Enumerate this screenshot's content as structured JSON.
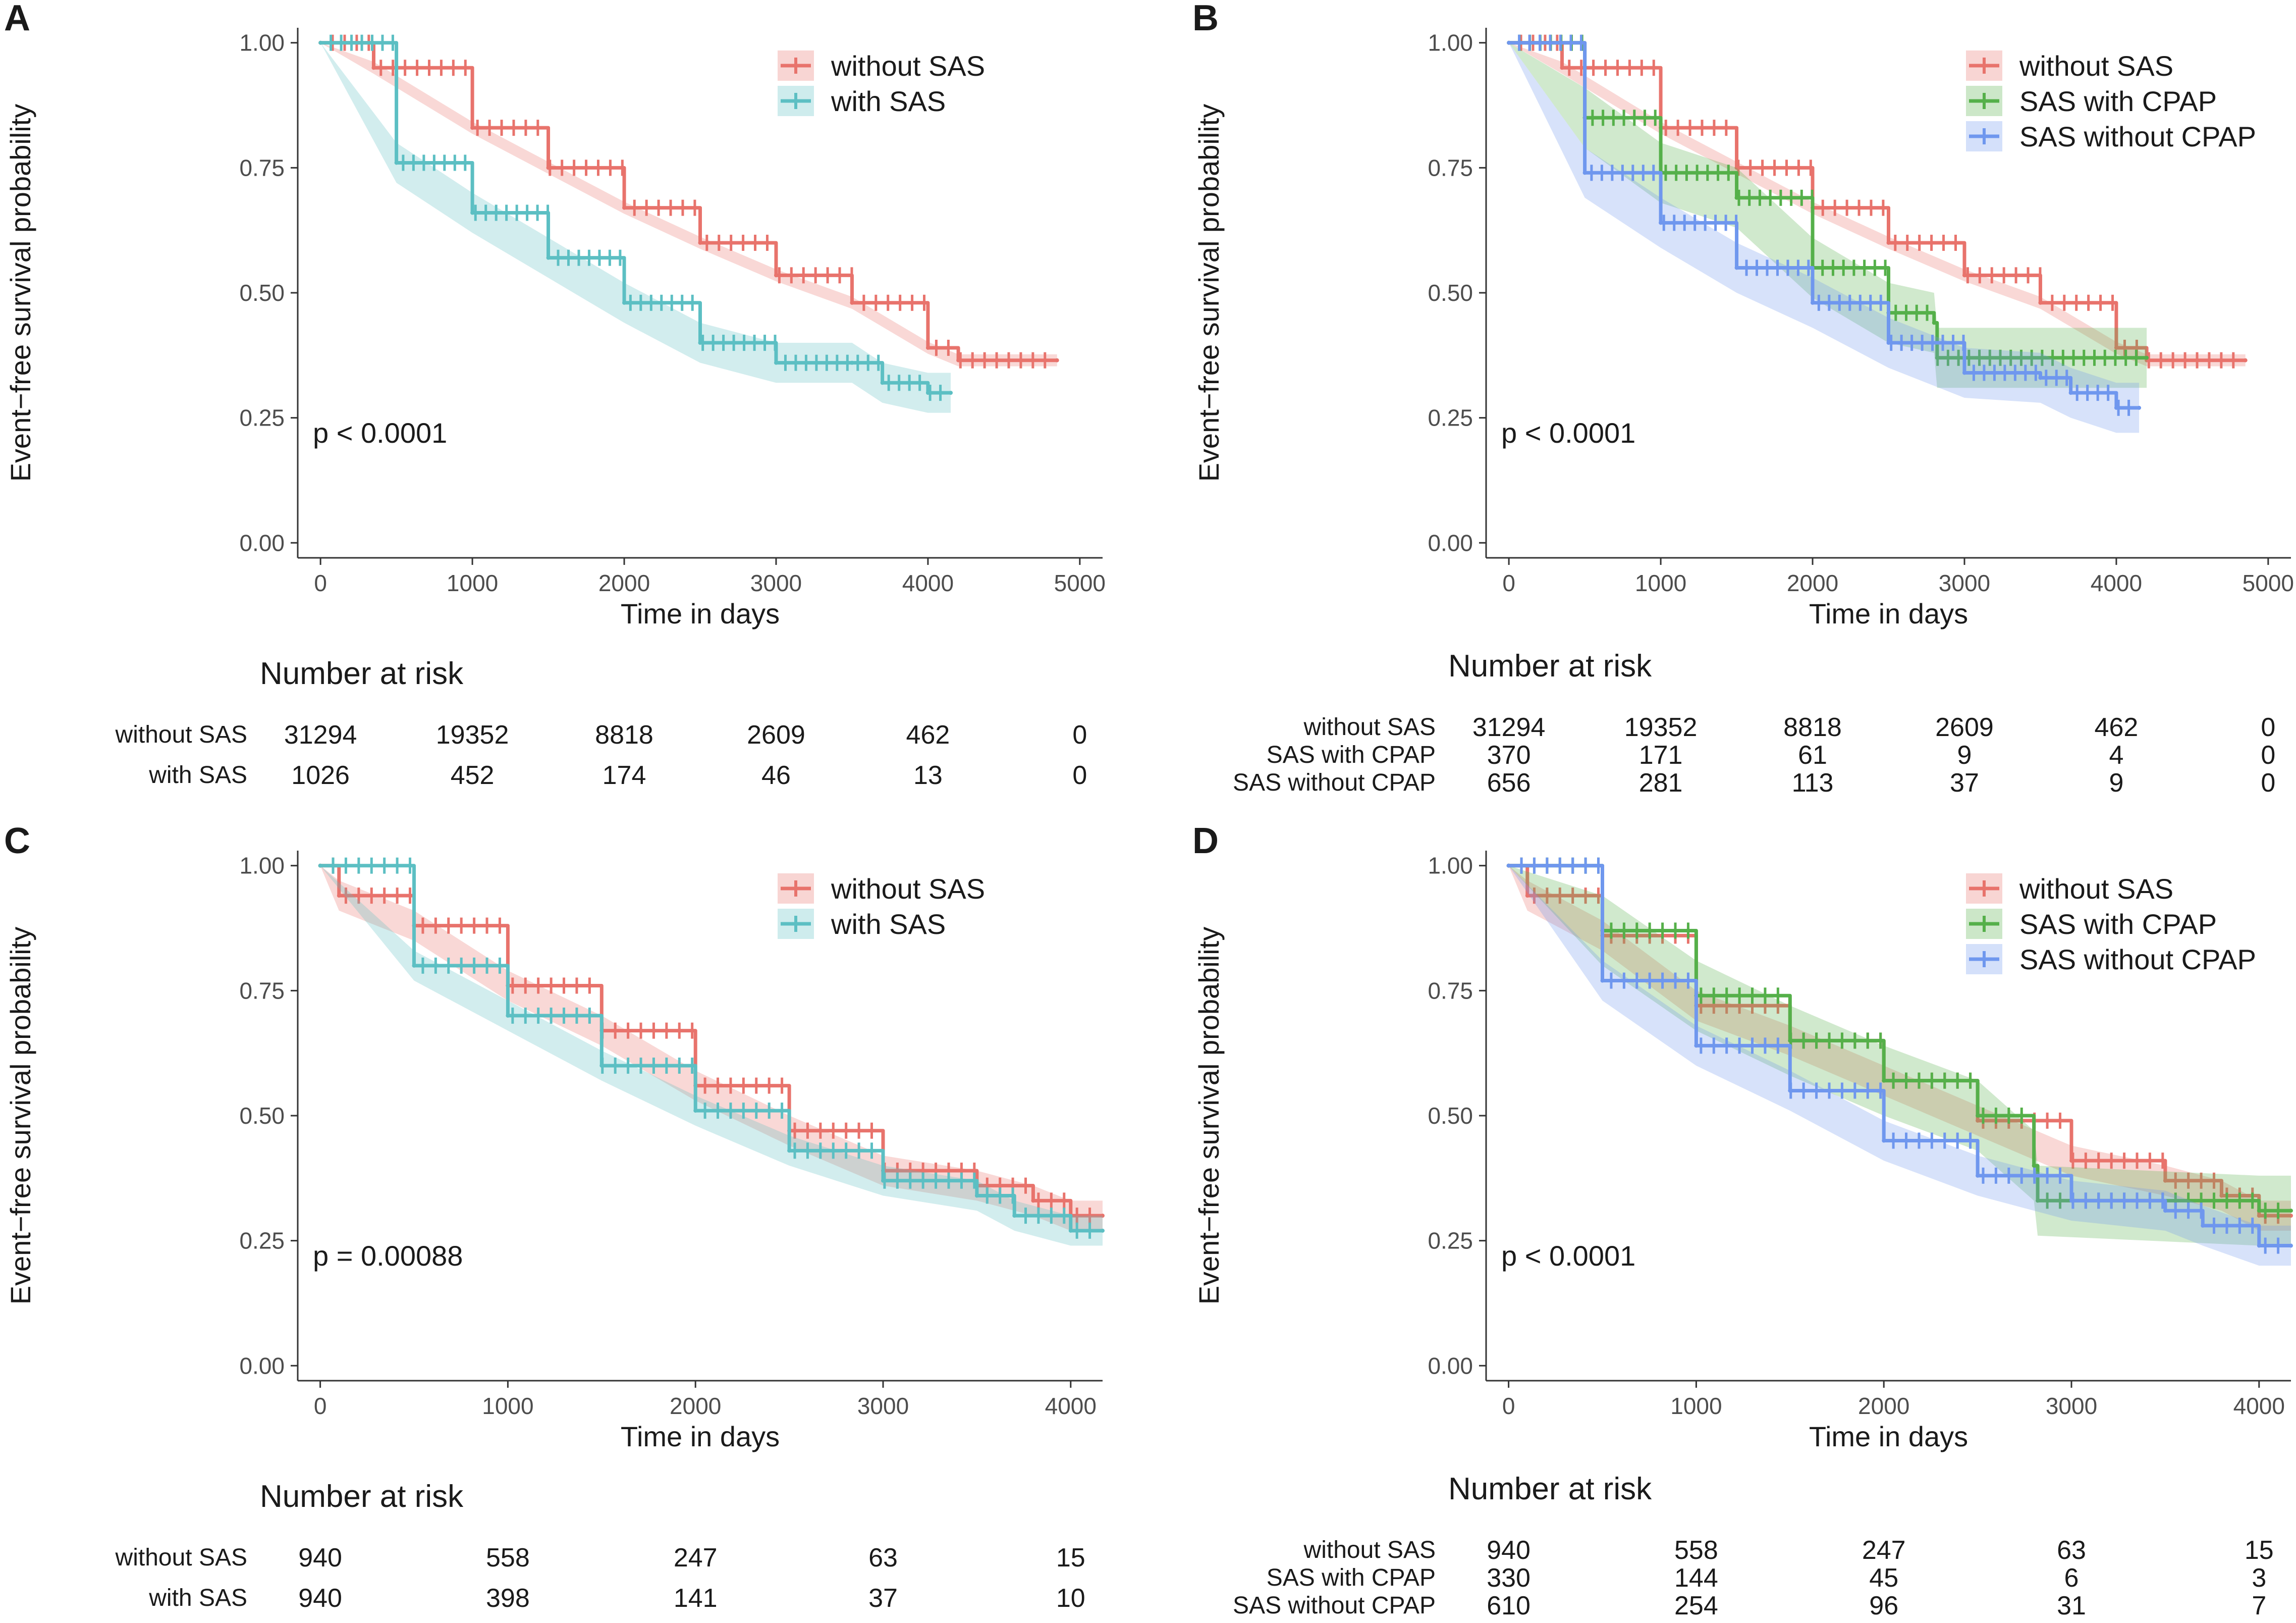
{
  "colors": {
    "without_sas": "#E8736C",
    "with_sas": "#5CBFC3",
    "sas_with_cpap": "#55B04A",
    "sas_without_cpap": "#6F97EE"
  },
  "chart_data": [
    {
      "type": "line",
      "panel": "A",
      "title": "",
      "xlabel": "Time in days",
      "ylabel": "Event−free survival probability",
      "xlim": [
        -150,
        5150
      ],
      "ylim": [
        -0.03,
        1.03
      ],
      "x_ticks": [
        0,
        1000,
        2000,
        3000,
        4000,
        5000
      ],
      "x_tick_labels": [
        "0",
        "1000",
        "2000",
        "3000",
        "4000",
        "5000"
      ],
      "y_ticks": [
        0,
        0.25,
        0.5,
        0.75,
        1.0
      ],
      "y_tick_labels": [
        "0.00",
        "0.25",
        "0.50",
        "0.75",
        "1.00"
      ],
      "pvalue": "p < 0.0001",
      "legend_position": "top-right",
      "series": [
        {
          "name": "without SAS",
          "color_key": "without_sas",
          "x": [
            0,
            350,
            1000,
            1500,
            2000,
            2500,
            3000,
            3500,
            4000,
            4200,
            4850
          ],
          "y": [
            1.0,
            0.95,
            0.83,
            0.75,
            0.67,
            0.6,
            0.535,
            0.48,
            0.39,
            0.365,
            0.365
          ],
          "ci_halfwidth": 0.012
        },
        {
          "name": "with SAS",
          "color_key": "with_sas",
          "x": [
            0,
            500,
            1000,
            1500,
            2000,
            2500,
            3000,
            3500,
            3700,
            4000,
            4150
          ],
          "y": [
            1.0,
            0.76,
            0.66,
            0.57,
            0.48,
            0.4,
            0.36,
            0.36,
            0.32,
            0.3,
            0.3
          ],
          "ci_halfwidth": 0.04
        }
      ],
      "risk_table": {
        "title": "Number at risk",
        "columns": [
          "0",
          "1000",
          "2000",
          "3000",
          "4000",
          "5000"
        ],
        "rows": [
          {
            "label": "without SAS",
            "values": [
              "31294",
              "19352",
              "8818",
              "2609",
              "462",
              "0"
            ]
          },
          {
            "label": "with SAS",
            "values": [
              "1026",
              "452",
              "174",
              "46",
              "13",
              "0"
            ]
          }
        ]
      }
    },
    {
      "type": "line",
      "panel": "B",
      "title": "",
      "xlabel": "Time in days",
      "ylabel": "Event−free survival probability",
      "xlim": [
        -150,
        5150
      ],
      "ylim": [
        -0.03,
        1.03
      ],
      "x_ticks": [
        0,
        1000,
        2000,
        3000,
        4000,
        5000
      ],
      "x_tick_labels": [
        "0",
        "1000",
        "2000",
        "3000",
        "4000",
        "5000"
      ],
      "y_ticks": [
        0,
        0.25,
        0.5,
        0.75,
        1.0
      ],
      "y_tick_labels": [
        "0.00",
        "0.25",
        "0.50",
        "0.75",
        "1.00"
      ],
      "pvalue": "p < 0.0001",
      "legend_position": "top-right",
      "series": [
        {
          "name": "without SAS",
          "color_key": "without_sas",
          "x": [
            0,
            350,
            1000,
            1500,
            2000,
            2500,
            3000,
            3500,
            4000,
            4200,
            4850
          ],
          "y": [
            1.0,
            0.95,
            0.83,
            0.75,
            0.67,
            0.6,
            0.535,
            0.48,
            0.39,
            0.365,
            0.365
          ],
          "ci_halfwidth": 0.012
        },
        {
          "name": "SAS with CPAP",
          "color_key": "sas_with_cpap",
          "x": [
            0,
            500,
            1000,
            1500,
            2000,
            2500,
            2800,
            2820,
            4200
          ],
          "y": [
            1.0,
            0.85,
            0.74,
            0.69,
            0.55,
            0.46,
            0.44,
            0.37,
            0.37
          ],
          "ci_halfwidth": 0.06
        },
        {
          "name": "SAS without CPAP",
          "color_key": "sas_without_cpap",
          "x": [
            0,
            500,
            1000,
            1500,
            2000,
            2500,
            3000,
            3500,
            3700,
            4000,
            4150
          ],
          "y": [
            1.0,
            0.74,
            0.64,
            0.55,
            0.48,
            0.4,
            0.34,
            0.33,
            0.3,
            0.27,
            0.27
          ],
          "ci_halfwidth": 0.05
        }
      ],
      "risk_table": {
        "title": "Number at risk",
        "columns": [
          "0",
          "1000",
          "2000",
          "3000",
          "4000",
          "5000"
        ],
        "rows": [
          {
            "label": "without SAS",
            "values": [
              "31294",
              "19352",
              "8818",
              "2609",
              "462",
              "0"
            ]
          },
          {
            "label": "SAS with CPAP",
            "values": [
              "370",
              "171",
              "61",
              "9",
              "4",
              "0"
            ]
          },
          {
            "label": "SAS without CPAP",
            "values": [
              "656",
              "281",
              "113",
              "37",
              "9",
              "0"
            ]
          }
        ]
      }
    },
    {
      "type": "line",
      "panel": "C",
      "title": "",
      "xlabel": "Time in days",
      "ylabel": "Event−free survival probability",
      "xlim": [
        -120,
        4170
      ],
      "ylim": [
        -0.03,
        1.03
      ],
      "x_ticks": [
        0,
        1000,
        2000,
        3000,
        4000
      ],
      "x_tick_labels": [
        "0",
        "1000",
        "2000",
        "3000",
        "4000"
      ],
      "y_ticks": [
        0,
        0.25,
        0.5,
        0.75,
        1.0
      ],
      "y_tick_labels": [
        "0.00",
        "0.25",
        "0.50",
        "0.75",
        "1.00"
      ],
      "pvalue": "p = 0.00088",
      "legend_position": "top-right",
      "series": [
        {
          "name": "without SAS",
          "color_key": "without_sas",
          "x": [
            0,
            100,
            500,
            1000,
            1500,
            2000,
            2500,
            3000,
            3500,
            3800,
            4000,
            4170
          ],
          "y": [
            1.0,
            0.94,
            0.88,
            0.76,
            0.67,
            0.56,
            0.47,
            0.39,
            0.36,
            0.33,
            0.3,
            0.3
          ],
          "ci_halfwidth": 0.03
        },
        {
          "name": "with SAS",
          "color_key": "with_sas",
          "x": [
            0,
            500,
            1000,
            1500,
            2000,
            2500,
            3000,
            3500,
            3700,
            4000,
            4170
          ],
          "y": [
            1.0,
            0.8,
            0.7,
            0.6,
            0.51,
            0.43,
            0.37,
            0.34,
            0.3,
            0.27,
            0.27
          ],
          "ci_halfwidth": 0.03
        }
      ],
      "risk_table": {
        "title": "Number at risk",
        "columns": [
          "0",
          "1000",
          "2000",
          "3000",
          "4000"
        ],
        "rows": [
          {
            "label": "without SAS",
            "values": [
              "940",
              "558",
              "247",
              "63",
              "15"
            ]
          },
          {
            "label": "with SAS",
            "values": [
              "940",
              "398",
              "141",
              "37",
              "10"
            ]
          }
        ]
      }
    },
    {
      "type": "line",
      "panel": "D",
      "title": "",
      "xlabel": "Time in days",
      "ylabel": "Event−free survival probability",
      "xlim": [
        -120,
        4170
      ],
      "ylim": [
        -0.03,
        1.03
      ],
      "x_ticks": [
        0,
        1000,
        2000,
        3000,
        4000
      ],
      "x_tick_labels": [
        "0",
        "1000",
        "2000",
        "3000",
        "4000"
      ],
      "y_ticks": [
        0,
        0.25,
        0.5,
        0.75,
        1.0
      ],
      "y_tick_labels": [
        "0.00",
        "0.25",
        "0.50",
        "0.75",
        "1.00"
      ],
      "pvalue": "p < 0.0001",
      "legend_position": "top-right",
      "series": [
        {
          "name": "without SAS",
          "color_key": "without_sas",
          "x": [
            0,
            100,
            500,
            1000,
            1500,
            2000,
            2500,
            3000,
            3500,
            3800,
            4000,
            4170
          ],
          "y": [
            1.0,
            0.94,
            0.86,
            0.72,
            0.65,
            0.57,
            0.49,
            0.41,
            0.37,
            0.34,
            0.3,
            0.3
          ],
          "ci_halfwidth": 0.03
        },
        {
          "name": "SAS with CPAP",
          "color_key": "sas_with_cpap",
          "x": [
            0,
            500,
            1000,
            1500,
            2000,
            2500,
            2800,
            2820,
            4000,
            4170
          ],
          "y": [
            1.0,
            0.87,
            0.74,
            0.65,
            0.57,
            0.5,
            0.4,
            0.33,
            0.31,
            0.31
          ],
          "ci_halfwidth": 0.07
        },
        {
          "name": "SAS without CPAP",
          "color_key": "sas_without_cpap",
          "x": [
            0,
            500,
            1000,
            1500,
            2000,
            2500,
            3000,
            3500,
            3700,
            4000,
            4170
          ],
          "y": [
            1.0,
            0.77,
            0.64,
            0.55,
            0.45,
            0.38,
            0.33,
            0.31,
            0.28,
            0.24,
            0.24
          ],
          "ci_halfwidth": 0.04
        }
      ],
      "risk_table": {
        "title": "Number at risk",
        "columns": [
          "0",
          "1000",
          "2000",
          "3000",
          "4000"
        ],
        "rows": [
          {
            "label": "without SAS",
            "values": [
              "940",
              "558",
              "247",
              "63",
              "15"
            ]
          },
          {
            "label": "SAS with CPAP",
            "values": [
              "330",
              "144",
              "45",
              "6",
              "3"
            ]
          },
          {
            "label": "SAS without CPAP",
            "values": [
              "610",
              "254",
              "96",
              "31",
              "7"
            ]
          }
        ]
      }
    }
  ]
}
